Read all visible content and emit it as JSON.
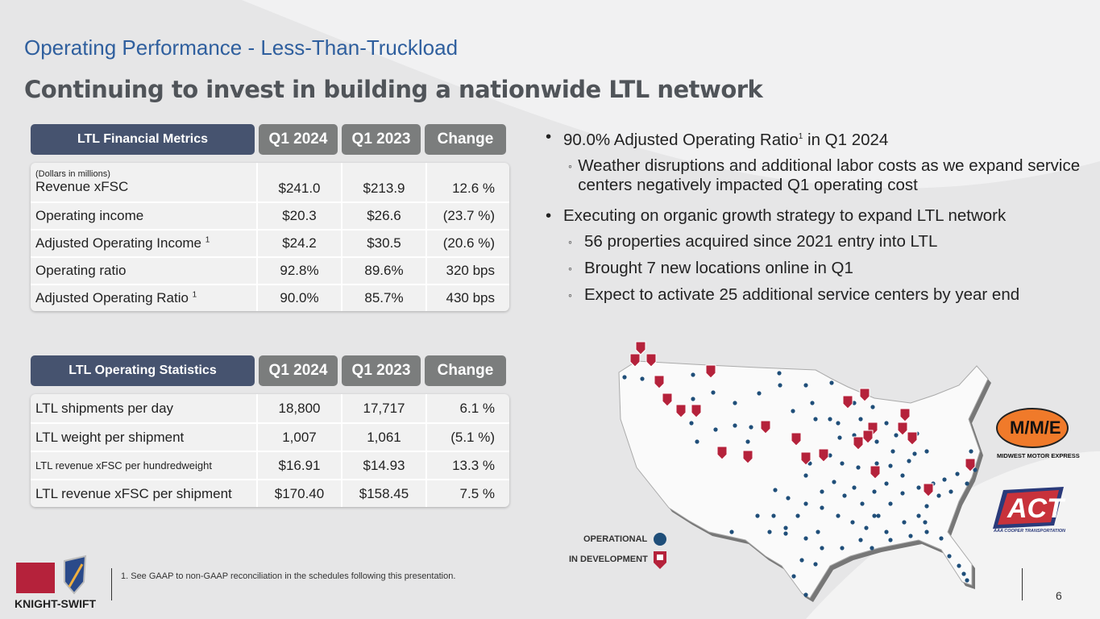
{
  "slide": {
    "title": "Operating Performance - Less-Than-Truckload",
    "subtitle": "Continuing to invest in building a nationwide LTL network",
    "page_number": "6"
  },
  "financial": {
    "headers": [
      "LTL Financial Metrics",
      "Q1 2024",
      "Q1 2023",
      "Change"
    ],
    "note": "(Dollars in millions)",
    "rows": [
      {
        "label": "Revenue xFSC",
        "sup": "",
        "q1_2024": "$241.0",
        "q1_2023": "$213.9",
        "change": "12.6 %"
      },
      {
        "label": "Operating income",
        "sup": "",
        "q1_2024": "$20.3",
        "q1_2023": "$26.6",
        "change": "(23.7 %)"
      },
      {
        "label": "Adjusted Operating Income ",
        "sup": "1",
        "q1_2024": "$24.2",
        "q1_2023": "$30.5",
        "change": "(20.6 %)"
      },
      {
        "label": "Operating ratio",
        "sup": "",
        "q1_2024": "92.8%",
        "q1_2023": "89.6%",
        "change": "320 bps"
      },
      {
        "label": "Adjusted Operating Ratio ",
        "sup": "1",
        "q1_2024": "90.0%",
        "q1_2023": "85.7%",
        "change": "430 bps"
      }
    ]
  },
  "stats": {
    "headers": [
      "LTL Operating Statistics",
      "Q1 2024",
      "Q1 2023",
      "Change"
    ],
    "rows": [
      {
        "label": "LTL shipments per day",
        "q1_2024": "18,800",
        "q1_2023": "17,717",
        "change": "6.1 %"
      },
      {
        "label": "LTL weight per shipment",
        "q1_2024": "1,007",
        "q1_2023": "1,061",
        "change": "(5.1 %)"
      },
      {
        "label": "LTL revenue xFSC per hundredweight",
        "q1_2024": "$16.91",
        "q1_2023": "$14.93",
        "change": "13.3 %"
      },
      {
        "label": "LTL revenue xFSC per shipment",
        "q1_2024": "$170.40",
        "q1_2023": "$158.45",
        "change": "7.5 %"
      }
    ]
  },
  "bullets": [
    {
      "text_a": "90.0% Adjusted Operating Ratio",
      "sup": "1",
      "text_b": " in Q1 2024",
      "subs": [
        "Weather disruptions and additional labor costs as we expand service centers negatively impacted Q1 operating cost"
      ]
    },
    {
      "text_a": "Executing on organic growth strategy to expand LTL network",
      "sup": "",
      "text_b": "",
      "subs": [
        "56 properties acquired since 2021 entry into LTL",
        "Brought 7 new locations online in Q1",
        "Expect to activate 25 additional service centers by year end"
      ]
    }
  ],
  "legend": {
    "operational": "OPERATIONAL",
    "in_development": "IN DEVELOPMENT"
  },
  "logos": {
    "knight_swift": "KNIGHT-SWIFT",
    "mme": "M/M/E",
    "mme_name": "MIDWEST MOTOR EXPRESS",
    "act": "ACT",
    "act_name": "AAA COOPER TRANSPORTATION"
  },
  "footnote": "1.   See GAAP to non-GAAP reconciliation in the schedules following this presentation.",
  "colors": {
    "title": "#2f5f9e",
    "header_dark": "#46536f",
    "header_gray": "#7b7d7d",
    "operational": "#1f4e79",
    "in_development": "#b5223b",
    "mme_orange": "#f07a2a"
  }
}
